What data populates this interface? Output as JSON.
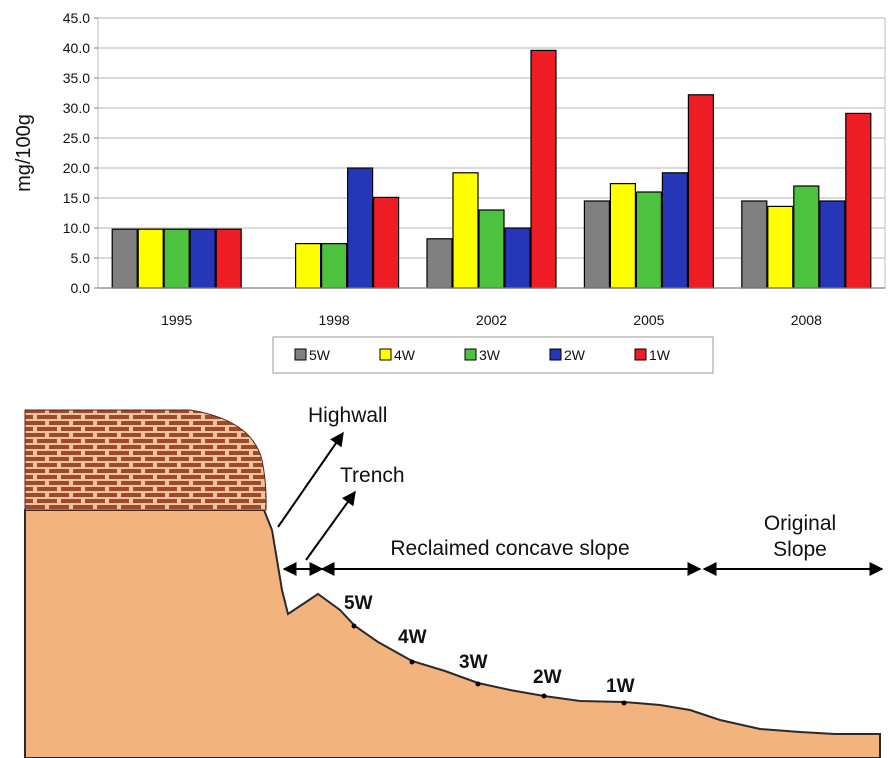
{
  "chart_data": {
    "type": "bar",
    "title": "",
    "xlabel": "",
    "ylabel": "mg/100g",
    "ylim": [
      0,
      45
    ],
    "yticks": [
      "0.0",
      "5.0",
      "10.0",
      "15.0",
      "20.0",
      "25.0",
      "30.0",
      "35.0",
      "40.0",
      "45.0"
    ],
    "grid": true,
    "legend_position": "bottom",
    "categories": [
      "1995",
      "1998",
      "2002",
      "2005",
      "2008"
    ],
    "series": [
      {
        "name": "5W",
        "color": "#808080",
        "values": [
          9.8,
          null,
          8.2,
          14.5,
          14.5
        ]
      },
      {
        "name": "4W",
        "color": "#ffff00",
        "values": [
          9.8,
          7.4,
          19.2,
          17.4,
          13.6
        ]
      },
      {
        "name": "3W",
        "color": "#4cc23e",
        "values": [
          9.8,
          7.4,
          13.0,
          16.0,
          17.0
        ]
      },
      {
        "name": "2W",
        "color": "#2537b8",
        "values": [
          9.8,
          20.0,
          10.0,
          19.2,
          14.5
        ]
      },
      {
        "name": "1W",
        "color": "#ee1c24",
        "values": [
          9.8,
          15.1,
          39.6,
          32.2,
          29.1
        ]
      }
    ]
  },
  "diagram": {
    "labels": {
      "highwall": "Highwall",
      "trench": "Trench",
      "reclaimed": "Reclaimed concave slope",
      "original_line1": "Original",
      "original_line2": "Slope"
    },
    "points": [
      "5W",
      "4W",
      "3W",
      "2W",
      "1W"
    ],
    "colors": {
      "ground": "#f2b37e",
      "brick": "#9b4a2c",
      "mortar": "#f2c29d"
    }
  }
}
